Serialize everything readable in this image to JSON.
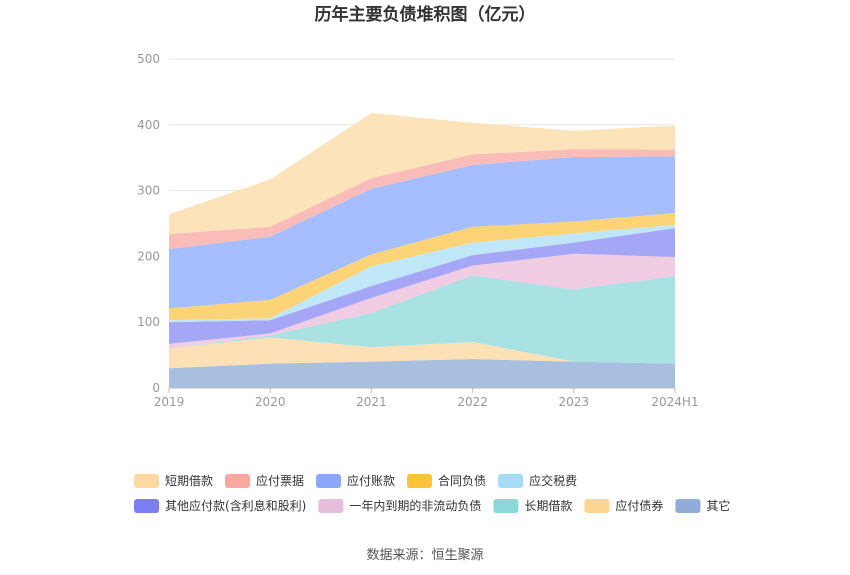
{
  "chart_data": {
    "type": "area",
    "title": "历年主要负债堆积图（亿元）",
    "categories": [
      "2019",
      "2020",
      "2021",
      "2022",
      "2023",
      "2024H1"
    ],
    "ylim": [
      0,
      500
    ],
    "yticks": [
      "0",
      "100",
      "200",
      "300",
      "400",
      "500"
    ],
    "grid": true,
    "legend_position": "bottom",
    "series": [
      {
        "name": "其它",
        "color": "#a8bfe0",
        "values": [
          30,
          37,
          40,
          44,
          40,
          37
        ]
      },
      {
        "name": "应付债券",
        "color": "#fde0b5",
        "values": [
          30,
          40,
          22,
          26,
          0,
          0
        ]
      },
      {
        "name": "长期借款",
        "color": "#a9e2e2",
        "values": [
          0,
          3,
          52,
          101,
          110,
          133
        ]
      },
      {
        "name": "一年内到期的非流动负债",
        "color": "#f0cde3",
        "values": [
          7,
          3,
          23,
          15,
          54,
          29
        ]
      },
      {
        "name": "其他应付款(含利息和股利)",
        "color": "#a5a6f6",
        "values": [
          33,
          20,
          18,
          16,
          17,
          44
        ]
      },
      {
        "name": "应交税费",
        "color": "#bfe7f8",
        "values": [
          3,
          3,
          30,
          19,
          14,
          5
        ]
      },
      {
        "name": "合同负债",
        "color": "#fcd477",
        "values": [
          18,
          28,
          18,
          24,
          18,
          18
        ]
      },
      {
        "name": "应付账款",
        "color": "#a6befd",
        "values": [
          90,
          96,
          100,
          94,
          98,
          86
        ]
      },
      {
        "name": "应付票据",
        "color": "#f9bcb8",
        "values": [
          23,
          15,
          16,
          16,
          12,
          10
        ]
      },
      {
        "name": "短期借款",
        "color": "#fde3b9",
        "values": [
          30,
          72,
          99,
          48,
          28,
          37
        ]
      }
    ],
    "legend": [
      {
        "name": "短期借款",
        "color": "#fdd9a0"
      },
      {
        "name": "应付票据",
        "color": "#f8a89e"
      },
      {
        "name": "应付账款",
        "color": "#8ba8f8"
      },
      {
        "name": "合同负债",
        "color": "#fbc33a"
      },
      {
        "name": "应交税费",
        "color": "#a4dcf6"
      },
      {
        "name": "其他应付款(含利息和股利)",
        "color": "#7b7ff2"
      },
      {
        "name": "一年内到期的非流动负债",
        "color": "#e8bcdb"
      },
      {
        "name": "长期借款",
        "color": "#8bd8d8"
      },
      {
        "name": "应付债券",
        "color": "#fdd693"
      },
      {
        "name": "其它",
        "color": "#91acd8"
      }
    ],
    "source": "数据来源：恒生聚源"
  }
}
